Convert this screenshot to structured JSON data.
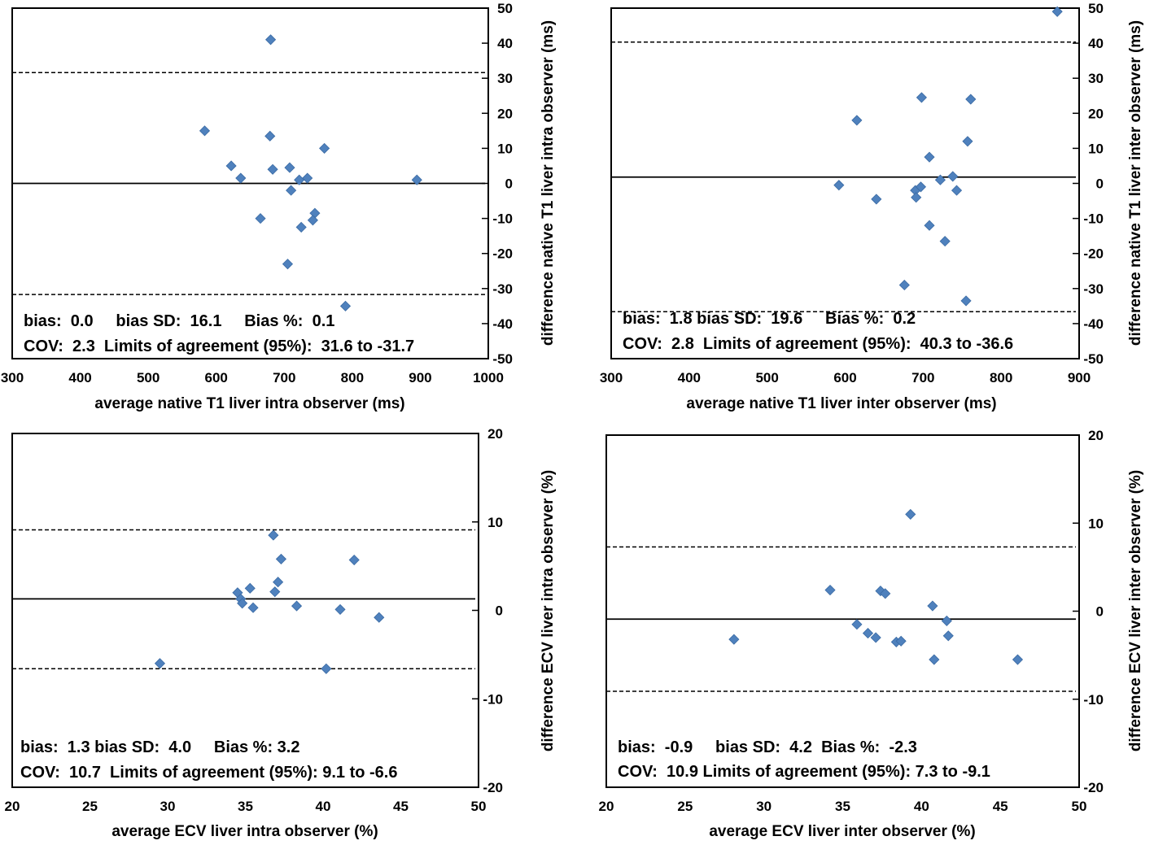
{
  "chart_data": [
    {
      "type": "scatter",
      "title": "",
      "xlabel": "average native T1 liver intra observer (ms)",
      "ylabel": "difference native T1 liver intra observer (ms)",
      "xlim": [
        300,
        1000
      ],
      "ylim": [
        -50,
        50
      ],
      "xticks": [
        300,
        400,
        500,
        600,
        700,
        800,
        900,
        1000
      ],
      "yticks": [
        -50,
        -40,
        -30,
        -20,
        -10,
        0,
        10,
        20,
        30,
        40,
        50
      ],
      "bias": 0.0,
      "upper_loa": 31.6,
      "lower_loa": -31.7,
      "stats_line1": "bias:  0.0     bias SD:  16.1     Bias %:  0.1",
      "stats_line2": "COV:  2.3  Limits of agreement (95%):  31.6 to -31.7",
      "grid": false,
      "legend": "none",
      "marker_color": "#4f81bd",
      "points": [
        [
          583,
          15
        ],
        [
          680,
          41
        ],
        [
          679,
          13.5
        ],
        [
          622,
          5
        ],
        [
          636,
          1.5
        ],
        [
          683,
          4
        ],
        [
          708,
          4.5
        ],
        [
          722,
          1
        ],
        [
          734,
          1.5
        ],
        [
          759,
          10
        ],
        [
          710,
          -2
        ],
        [
          665,
          -10
        ],
        [
          745,
          -8.5
        ],
        [
          742,
          -10.5
        ],
        [
          725,
          -12.5
        ],
        [
          705,
          -23
        ],
        [
          790,
          -35
        ],
        [
          895,
          1
        ]
      ]
    },
    {
      "type": "scatter",
      "title": "",
      "xlabel": "average native T1 liver inter observer (ms)",
      "ylabel": "difference native T1 liver inter observer (ms)",
      "xlim": [
        300,
        900
      ],
      "ylim": [
        -50,
        50
      ],
      "xticks": [
        300,
        400,
        500,
        600,
        700,
        800,
        900
      ],
      "yticks": [
        -50,
        -40,
        -30,
        -20,
        -10,
        0,
        10,
        20,
        30,
        40,
        50
      ],
      "bias": 1.8,
      "upper_loa": 40.3,
      "lower_loa": -36.6,
      "stats_line1": "bias:  1.8 bias SD:  19.6     Bias %:  0.2",
      "stats_line2": "COV:  2.8  Limits of agreement (95%):  40.3 to -36.6",
      "grid": false,
      "legend": "none",
      "marker_color": "#4f81bd",
      "points": [
        [
          872,
          49
        ],
        [
          615,
          18
        ],
        [
          698,
          24.5
        ],
        [
          761,
          24
        ],
        [
          708,
          7.5
        ],
        [
          757,
          12
        ],
        [
          722,
          1
        ],
        [
          738,
          2
        ],
        [
          592,
          -0.5
        ],
        [
          640,
          -4.5
        ],
        [
          690,
          -2
        ],
        [
          697,
          -1
        ],
        [
          743,
          -2
        ],
        [
          691,
          -4
        ],
        [
          708,
          -12
        ],
        [
          728,
          -16.5
        ],
        [
          676,
          -29
        ],
        [
          755,
          -33.5
        ]
      ]
    },
    {
      "type": "scatter",
      "title": "",
      "xlabel": "average ECV liver intra observer (%)",
      "ylabel": "difference  ECV liver intra observer (%)",
      "xlim": [
        20,
        50
      ],
      "ylim": [
        -20,
        20
      ],
      "xticks": [
        20,
        25,
        30,
        35,
        40,
        45,
        50
      ],
      "yticks": [
        -20,
        -10,
        0,
        10,
        20
      ],
      "bias": 1.3,
      "upper_loa": 9.1,
      "lower_loa": -6.6,
      "stats_line1": "bias:  1.3 bias SD:  4.0     Bias %: 3.2",
      "stats_line2": "COV:  10.7  Limits of agreement (95%): 9.1 to -6.6",
      "grid": false,
      "legend": "none",
      "marker_color": "#4f81bd",
      "points": [
        [
          29.5,
          -6
        ],
        [
          34.5,
          2
        ],
        [
          34.7,
          1.3
        ],
        [
          34.8,
          0.8
        ],
        [
          35.3,
          2.5
        ],
        [
          35.5,
          0.3
        ],
        [
          36.8,
          8.5
        ],
        [
          36.9,
          2.1
        ],
        [
          37.1,
          3.2
        ],
        [
          37.3,
          5.8
        ],
        [
          38.3,
          0.5
        ],
        [
          40.2,
          -6.6
        ],
        [
          41.1,
          0.1
        ],
        [
          42.0,
          5.7
        ],
        [
          43.6,
          -0.8
        ]
      ]
    },
    {
      "type": "scatter",
      "title": "",
      "xlabel": "average ECV liver inter observer (%)",
      "ylabel": "difference  ECV liver inter observer (%)",
      "xlim": [
        20,
        50
      ],
      "ylim": [
        -20,
        20
      ],
      "xticks": [
        20,
        25,
        30,
        35,
        40,
        45,
        50
      ],
      "yticks": [
        -20,
        -10,
        0,
        10,
        20
      ],
      "bias": -0.9,
      "upper_loa": 7.3,
      "lower_loa": -9.1,
      "stats_line1": "bias:  -0.9     bias SD:  4.2  Bias %:  -2.3",
      "stats_line2": "COV:  10.9 Limits of agreement (95%): 7.3 to -9.1",
      "grid": false,
      "legend": "none",
      "marker_color": "#4f81bd",
      "points": [
        [
          28.1,
          -3.2
        ],
        [
          34.2,
          2.4
        ],
        [
          35.9,
          -1.5
        ],
        [
          36.6,
          -2.5
        ],
        [
          37.1,
          -3
        ],
        [
          37.4,
          2.3
        ],
        [
          37.7,
          2
        ],
        [
          38.4,
          -3.5
        ],
        [
          38.7,
          -3.4
        ],
        [
          39.3,
          11
        ],
        [
          40.7,
          0.6
        ],
        [
          40.8,
          -5.5
        ],
        [
          41.6,
          -1.1
        ],
        [
          41.7,
          -2.8
        ],
        [
          46.1,
          -5.5
        ]
      ]
    }
  ]
}
